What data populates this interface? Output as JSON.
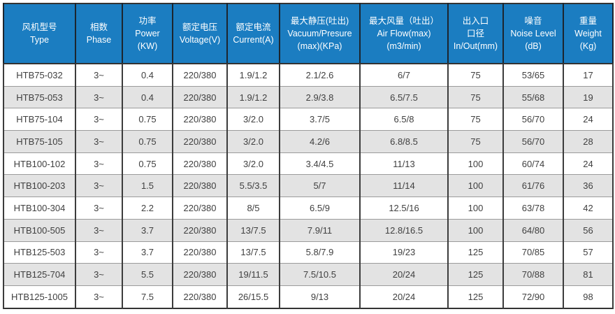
{
  "colors": {
    "header_bg": "#1b7dc1",
    "header_text": "#ffffff",
    "header_divider": "#1c252e",
    "row_bg": "#ffffff",
    "row_alt_bg": "#e3e3e3",
    "body_text": "#404040",
    "grid_vertical": "#3c3c3c",
    "grid_horizontal": "#9b9b9b",
    "outer_border": "#333333"
  },
  "table": {
    "columns": [
      {
        "key": "type",
        "lines": [
          "风机型号",
          "Type"
        ]
      },
      {
        "key": "phase",
        "lines": [
          "相数",
          "Phase"
        ]
      },
      {
        "key": "power",
        "lines": [
          "功率",
          "Power",
          "(KW)"
        ]
      },
      {
        "key": "voltage",
        "lines": [
          "额定电压",
          "Voltage(V)"
        ]
      },
      {
        "key": "current",
        "lines": [
          "额定电流",
          "Current(A)"
        ]
      },
      {
        "key": "vacuum",
        "lines": [
          "最大静压(吐出)",
          "Vacuum/Presure",
          "(max)(KPa)"
        ]
      },
      {
        "key": "airflow",
        "lines": [
          "最大风量（吐出）",
          "Air Flow(max)",
          "(m3/min)"
        ]
      },
      {
        "key": "inout",
        "lines": [
          "出入口",
          "口径",
          "In/Out(mm)"
        ]
      },
      {
        "key": "noise",
        "lines": [
          "噪音",
          "Noise Level",
          "(dB)"
        ]
      },
      {
        "key": "weight",
        "lines": [
          "重量",
          "Weight",
          "(Kg)"
        ]
      }
    ],
    "rows": [
      [
        "HTB75-032",
        "3~",
        "0.4",
        "220/380",
        "1.9/1.2",
        "2.1/2.6",
        "6/7",
        "75",
        "53/65",
        "17"
      ],
      [
        "HTB75-053",
        "3~",
        "0.4",
        "220/380",
        "1.9/1.2",
        "2.9/3.8",
        "6.5/7.5",
        "75",
        "55/68",
        "19"
      ],
      [
        "HTB75-104",
        "3~",
        "0.75",
        "220/380",
        "3/2.0",
        "3.7/5",
        "6.5/8",
        "75",
        "56/70",
        "24"
      ],
      [
        "HTB75-105",
        "3~",
        "0.75",
        "220/380",
        "3/2.0",
        "4.2/6",
        "6.8/8.5",
        "75",
        "56/70",
        "28"
      ],
      [
        "HTB100-102",
        "3~",
        "0.75",
        "220/380",
        "3/2.0",
        "3.4/4.5",
        "11/13",
        "100",
        "60/74",
        "24"
      ],
      [
        "HTB100-203",
        "3~",
        "1.5",
        "220/380",
        "5.5/3.5",
        "5/7",
        "11/14",
        "100",
        "61/76",
        "36"
      ],
      [
        "HTB100-304",
        "3~",
        "2.2",
        "220/380",
        "8/5",
        "6.5/9",
        "12.5/16",
        "100",
        "63/78",
        "42"
      ],
      [
        "HTB100-505",
        "3~",
        "3.7",
        "220/380",
        "13/7.5",
        "7.9/11",
        "12.8/16.5",
        "100",
        "64/80",
        "56"
      ],
      [
        "HTB125-503",
        "3~",
        "3.7",
        "220/380",
        "13/7.5",
        "5.8/7.9",
        "19/23",
        "125",
        "70/85",
        "57"
      ],
      [
        "HTB125-704",
        "3~",
        "5.5",
        "220/380",
        "19/11.5",
        "7.5/10.5",
        "20/24",
        "125",
        "70/88",
        "81"
      ],
      [
        "HTB125-1005",
        "3~",
        "7.5",
        "220/380",
        "26/15.5",
        "9/13",
        "20/24",
        "125",
        "72/90",
        "98"
      ]
    ]
  },
  "chart_data": {
    "type": "table",
    "columns": [
      "风机型号 Type",
      "相数 Phase",
      "功率 Power (KW)",
      "额定电压 Voltage(V)",
      "额定电流 Current(A)",
      "最大静压(吐出) Vacuum/Presure (max)(KPa)",
      "最大风量（吐出） Air Flow(max) (m3/min)",
      "出入口口径 In/Out(mm)",
      "噪音 Noise Level (dB)",
      "重量 Weight (Kg)"
    ],
    "rows": [
      [
        "HTB75-032",
        "3~",
        0.4,
        "220/380",
        "1.9/1.2",
        "2.1/2.6",
        "6/7",
        75,
        "53/65",
        17
      ],
      [
        "HTB75-053",
        "3~",
        0.4,
        "220/380",
        "1.9/1.2",
        "2.9/3.8",
        "6.5/7.5",
        75,
        "55/68",
        19
      ],
      [
        "HTB75-104",
        "3~",
        0.75,
        "220/380",
        "3/2.0",
        "3.7/5",
        "6.5/8",
        75,
        "56/70",
        24
      ],
      [
        "HTB75-105",
        "3~",
        0.75,
        "220/380",
        "3/2.0",
        "4.2/6",
        "6.8/8.5",
        75,
        "56/70",
        28
      ],
      [
        "HTB100-102",
        "3~",
        0.75,
        "220/380",
        "3/2.0",
        "3.4/4.5",
        "11/13",
        100,
        "60/74",
        24
      ],
      [
        "HTB100-203",
        "3~",
        1.5,
        "220/380",
        "5.5/3.5",
        "5/7",
        "11/14",
        100,
        "61/76",
        36
      ],
      [
        "HTB100-304",
        "3~",
        2.2,
        "220/380",
        "8/5",
        "6.5/9",
        "12.5/16",
        100,
        "63/78",
        42
      ],
      [
        "HTB100-505",
        "3~",
        3.7,
        "220/380",
        "13/7.5",
        "7.9/11",
        "12.8/16.5",
        100,
        "64/80",
        56
      ],
      [
        "HTB125-503",
        "3~",
        3.7,
        "220/380",
        "13/7.5",
        "5.8/7.9",
        "19/23",
        125,
        "70/85",
        57
      ],
      [
        "HTB125-704",
        "3~",
        5.5,
        "220/380",
        "19/11.5",
        "7.5/10.5",
        "20/24",
        125,
        "70/88",
        81
      ],
      [
        "HTB125-1005",
        "3~",
        7.5,
        "220/380",
        "26/15.5",
        "9/13",
        "20/24",
        125,
        "72/90",
        98
      ]
    ]
  }
}
